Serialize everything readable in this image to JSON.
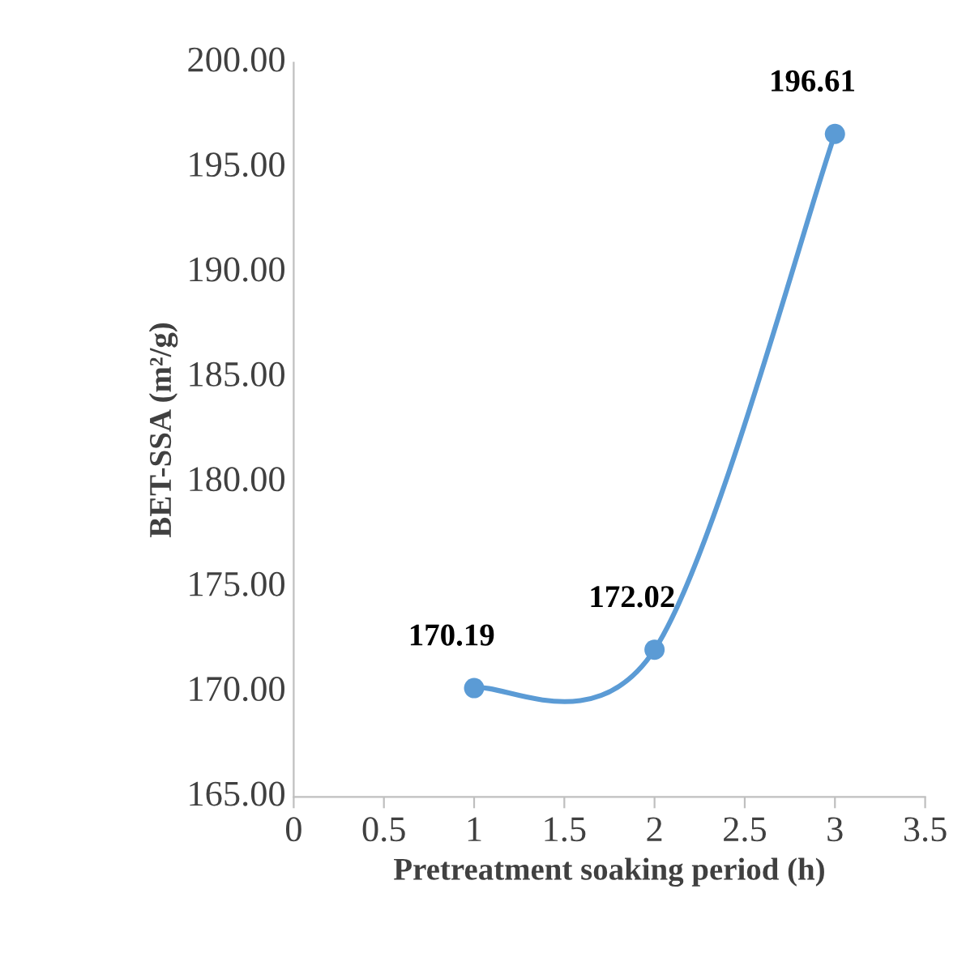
{
  "chart_data": {
    "type": "line",
    "xlabel": "Pretreatment soaking period (h)",
    "ylabel": "BET-SSA (m²/g)",
    "x": [
      1,
      2,
      3
    ],
    "series": [
      {
        "color": "#5b9bd5",
        "values": [
          170.19,
          172.02,
          196.61
        ]
      }
    ],
    "xlim": [
      0,
      3.5
    ],
    "xticks": [
      0,
      0.5,
      1,
      1.5,
      2,
      2.5,
      3,
      3.5
    ],
    "ylim": [
      165,
      200
    ],
    "yticks": [
      {
        "value": 165,
        "label": "165.00"
      },
      {
        "value": 170,
        "label": "170.00"
      },
      {
        "value": 175,
        "label": "175.00"
      },
      {
        "value": 180,
        "label": "180.00"
      },
      {
        "value": 185,
        "label": "185.00"
      },
      {
        "value": 190,
        "label": "190.00"
      },
      {
        "value": 195,
        "label": "195.00"
      },
      {
        "value": 200,
        "label": "200.00"
      }
    ],
    "grid": false,
    "legend": false,
    "marker": "circle",
    "line_style": "solid",
    "data_labels": true
  }
}
